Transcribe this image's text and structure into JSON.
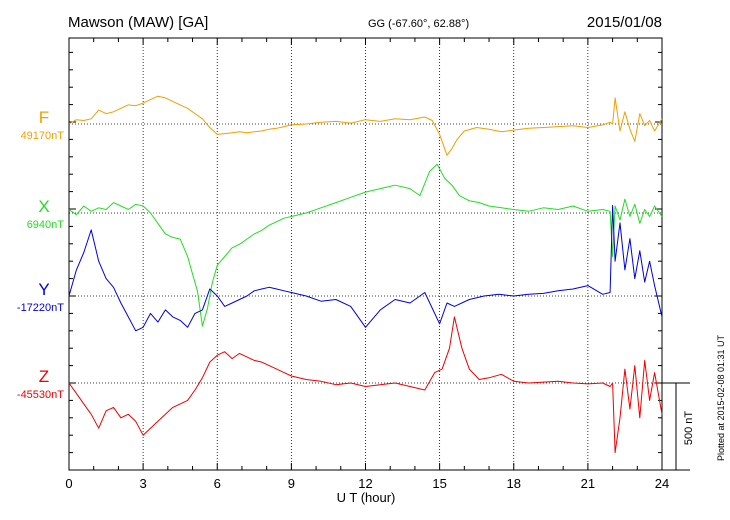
{
  "header": {
    "station": "Mawson (MAW)  [GA]",
    "coords": "GG (-67.60°,  62.88°)",
    "date": "2015/01/08"
  },
  "side_note": "Plotted at 2015-02-08 01:31  UT",
  "chart_data": {
    "type": "line",
    "title": "Mawson (MAW)  [GA]",
    "xlabel": "U T (hour)",
    "ylabel": "",
    "xlim": [
      0,
      24
    ],
    "x_ticks": [
      0,
      3,
      6,
      9,
      12,
      15,
      18,
      21,
      24
    ],
    "x_tick_labels": [
      "0",
      "3",
      "6",
      "9",
      "12",
      "15",
      "18",
      "21",
      "24"
    ],
    "scale_bar": {
      "label": "500 nT",
      "value_nT": 500
    },
    "grid": "dotted vertical every 3 h, dotted baseline per component",
    "series": [
      {
        "name": "F",
        "color": "#f0a000",
        "baseline_label": "49170nT",
        "baseline_nT": 49170,
        "x": [
          0,
          0.3,
          0.6,
          0.9,
          1.2,
          1.5,
          1.8,
          2.1,
          2.4,
          2.7,
          3.0,
          3.3,
          3.6,
          3.9,
          4.2,
          4.5,
          4.8,
          5.1,
          5.4,
          5.7,
          6.0,
          6.3,
          6.6,
          6.9,
          7.2,
          7.5,
          7.8,
          8.1,
          8.4,
          8.7,
          9.0,
          9.6,
          10.2,
          10.8,
          11.4,
          12.0,
          12.6,
          13.2,
          13.8,
          14.4,
          14.7,
          15.0,
          15.3,
          15.5,
          15.7,
          16.0,
          16.5,
          17.0,
          17.5,
          18.0,
          18.6,
          19.2,
          19.8,
          20.4,
          21.0,
          21.6,
          21.9,
          22.0,
          22.1,
          22.3,
          22.5,
          22.7,
          22.9,
          23.1,
          23.3,
          23.5,
          23.7,
          24.0
        ],
        "values": [
          0,
          25,
          20,
          30,
          80,
          60,
          70,
          90,
          110,
          105,
          120,
          140,
          160,
          150,
          130,
          110,
          90,
          60,
          30,
          -20,
          -60,
          -55,
          -50,
          -45,
          -50,
          -45,
          -40,
          -30,
          -25,
          -15,
          -5,
          0,
          10,
          15,
          5,
          25,
          15,
          30,
          25,
          40,
          20,
          -60,
          -180,
          -140,
          -90,
          -40,
          -20,
          -30,
          -45,
          -35,
          -25,
          -20,
          -15,
          -10,
          -20,
          -5,
          10,
          0,
          150,
          -40,
          70,
          -30,
          -100,
          60,
          -10,
          20,
          -40,
          30
        ]
      },
      {
        "name": "X",
        "color": "#22dd22",
        "baseline_label": "6940nT",
        "baseline_nT": 6940,
        "x": [
          0,
          0.3,
          0.6,
          0.9,
          1.2,
          1.5,
          1.8,
          2.1,
          2.4,
          2.7,
          3.0,
          3.3,
          3.6,
          3.9,
          4.2,
          4.5,
          4.8,
          5.0,
          5.2,
          5.4,
          5.6,
          5.8,
          6.0,
          6.3,
          6.6,
          6.9,
          7.2,
          7.5,
          7.8,
          8.1,
          8.4,
          8.7,
          9.0,
          9.6,
          10.2,
          10.8,
          11.4,
          12.0,
          12.6,
          13.2,
          13.8,
          14.2,
          14.6,
          14.9,
          15.2,
          15.5,
          15.8,
          16.2,
          16.6,
          17.0,
          17.5,
          18.0,
          18.6,
          19.2,
          19.8,
          20.4,
          21.0,
          21.6,
          21.9,
          22.0,
          22.1,
          22.3,
          22.5,
          22.7,
          22.9,
          23.1,
          23.3,
          23.5,
          23.7,
          24.0
        ],
        "values": [
          20,
          -10,
          40,
          10,
          30,
          20,
          60,
          40,
          20,
          50,
          40,
          0,
          -60,
          -120,
          -140,
          -150,
          -250,
          -350,
          -450,
          -650,
          -550,
          -400,
          -300,
          -250,
          -200,
          -180,
          -150,
          -120,
          -100,
          -70,
          -50,
          -30,
          -20,
          0,
          30,
          60,
          90,
          120,
          140,
          160,
          140,
          100,
          240,
          280,
          200,
          160,
          100,
          70,
          60,
          40,
          30,
          20,
          10,
          30,
          20,
          40,
          10,
          20,
          10,
          -250,
          40,
          -40,
          80,
          -20,
          50,
          -60,
          20,
          -20,
          40,
          -20
        ]
      },
      {
        "name": "Y",
        "color": "#0000dd",
        "baseline_label": "-17220nT",
        "baseline_nT": -17220,
        "x": [
          0,
          0.3,
          0.6,
          0.9,
          1.2,
          1.5,
          1.8,
          2.1,
          2.4,
          2.7,
          3.0,
          3.3,
          3.6,
          3.9,
          4.2,
          4.5,
          4.8,
          5.1,
          5.4,
          5.7,
          6.0,
          6.3,
          6.6,
          6.9,
          7.2,
          7.5,
          7.8,
          8.1,
          8.4,
          8.7,
          9.0,
          9.6,
          10.2,
          10.8,
          11.4,
          12.0,
          12.6,
          13.2,
          13.8,
          14.4,
          15.0,
          15.3,
          15.6,
          16.2,
          16.8,
          17.4,
          18.0,
          18.6,
          19.2,
          19.8,
          20.4,
          21.0,
          21.6,
          21.9,
          22.0,
          22.1,
          22.3,
          22.5,
          22.7,
          22.9,
          23.1,
          23.3,
          23.5,
          23.7,
          24.0
        ],
        "values": [
          0,
          150,
          250,
          380,
          200,
          100,
          50,
          -40,
          -120,
          -200,
          -180,
          -100,
          -150,
          -80,
          -120,
          -140,
          -180,
          -100,
          -80,
          40,
          0,
          -60,
          -40,
          -20,
          0,
          30,
          40,
          50,
          40,
          30,
          20,
          0,
          -30,
          -20,
          -60,
          -180,
          -80,
          -20,
          -40,
          20,
          -160,
          -40,
          -60,
          -20,
          0,
          10,
          0,
          10,
          15,
          30,
          40,
          60,
          10,
          20,
          520,
          200,
          420,
          150,
          330,
          100,
          260,
          80,
          200,
          60,
          -120
        ]
      },
      {
        "name": "Z",
        "color": "#ee0000",
        "baseline_label": "-45530nT",
        "baseline_nT": -45530,
        "x": [
          0,
          0.3,
          0.6,
          0.9,
          1.2,
          1.5,
          1.8,
          2.1,
          2.4,
          2.7,
          3.0,
          3.3,
          3.6,
          3.9,
          4.2,
          4.5,
          4.8,
          5.1,
          5.4,
          5.7,
          6.0,
          6.3,
          6.6,
          6.9,
          7.2,
          7.5,
          7.8,
          8.1,
          8.4,
          8.7,
          9.0,
          9.6,
          10.2,
          10.8,
          11.4,
          12.0,
          12.6,
          13.2,
          13.8,
          14.4,
          14.8,
          15.1,
          15.4,
          15.6,
          15.9,
          16.2,
          16.6,
          17.0,
          17.5,
          18.0,
          18.6,
          19.2,
          19.8,
          20.4,
          21.0,
          21.6,
          21.9,
          22.0,
          22.1,
          22.3,
          22.5,
          22.7,
          22.9,
          23.1,
          23.3,
          23.5,
          23.7,
          24.0
        ],
        "values": [
          0,
          -60,
          -120,
          -180,
          -260,
          -160,
          -140,
          -200,
          -180,
          -220,
          -300,
          -260,
          -220,
          -180,
          -140,
          -120,
          -100,
          -40,
          30,
          120,
          160,
          180,
          140,
          170,
          150,
          130,
          120,
          100,
          80,
          60,
          40,
          20,
          10,
          -10,
          0,
          -20,
          -10,
          0,
          -20,
          -40,
          60,
          80,
          200,
          380,
          200,
          80,
          20,
          30,
          50,
          10,
          0,
          5,
          10,
          0,
          -5,
          0,
          -20,
          0,
          -400,
          -200,
          80,
          -150,
          100,
          -200,
          130,
          -100,
          60,
          -180
        ]
      }
    ]
  }
}
